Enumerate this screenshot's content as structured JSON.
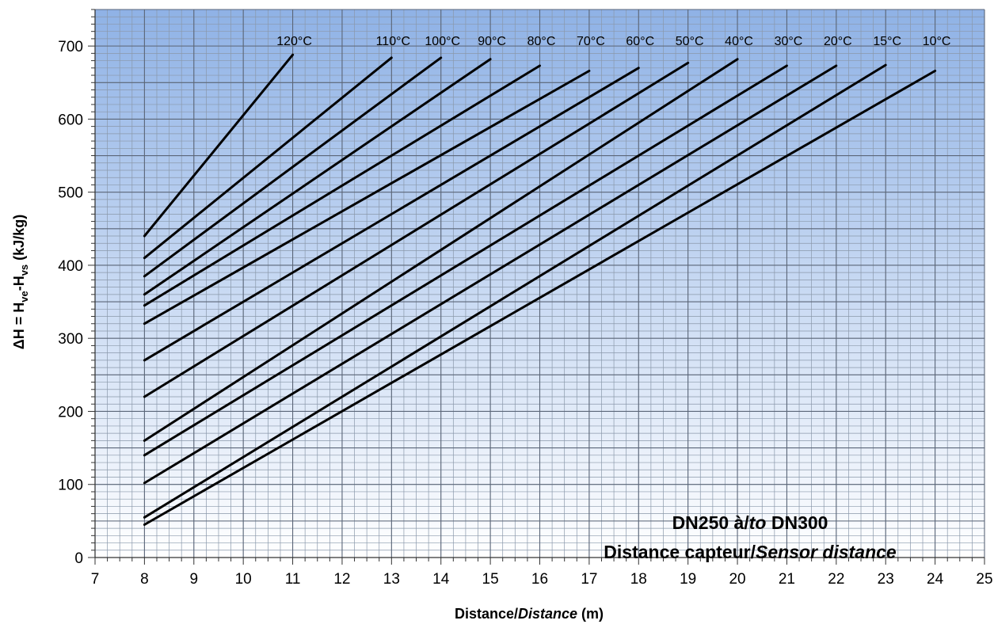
{
  "chart_data": {
    "type": "line",
    "title": "",
    "xlabel": {
      "normal": "Distance/",
      "italic": "Distance",
      "suffix": " (m)"
    },
    "ylabel": {
      "prefix": "ΔH = H",
      "sub1": "ve",
      "mid": "-H",
      "sub2": "vs",
      "suffix": " (kJ/kg)"
    },
    "xlim": [
      7,
      25
    ],
    "ylim": [
      0,
      750
    ],
    "xticks": [
      7,
      8,
      9,
      10,
      11,
      12,
      13,
      14,
      15,
      16,
      17,
      18,
      19,
      20,
      21,
      22,
      23,
      24,
      25
    ],
    "yticks": [
      0,
      100,
      200,
      300,
      400,
      500,
      600,
      700
    ],
    "grid": true,
    "annotation": {
      "line1": {
        "a": "DN250 à/",
        "b": "to",
        "c": " DN300"
      },
      "line2": {
        "a": "Distance capteur/",
        "b": "Sensor distance"
      }
    },
    "series": [
      {
        "name": "120°C",
        "x": [
          8,
          11
        ],
        "y": [
          440,
          688
        ]
      },
      {
        "name": "110°C",
        "x": [
          8,
          13
        ],
        "y": [
          410,
          684
        ]
      },
      {
        "name": "100°C",
        "x": [
          8,
          14
        ],
        "y": [
          385,
          684
        ]
      },
      {
        "name": "90°C",
        "x": [
          8,
          15
        ],
        "y": [
          360,
          682
        ]
      },
      {
        "name": "80°C",
        "x": [
          8,
          16
        ],
        "y": [
          345,
          673
        ]
      },
      {
        "name": "70°C",
        "x": [
          8,
          17
        ],
        "y": [
          320,
          666
        ]
      },
      {
        "name": "60°C",
        "x": [
          8,
          18
        ],
        "y": [
          270,
          670
        ]
      },
      {
        "name": "50°C",
        "x": [
          8,
          19
        ],
        "y": [
          220,
          677
        ]
      },
      {
        "name": "40°C",
        "x": [
          8,
          20
        ],
        "y": [
          160,
          682
        ]
      },
      {
        "name": "30°C",
        "x": [
          8,
          21
        ],
        "y": [
          140,
          673
        ]
      },
      {
        "name": "20°C",
        "x": [
          8,
          22
        ],
        "y": [
          102,
          673
        ]
      },
      {
        "name": "15°C",
        "x": [
          8,
          23
        ],
        "y": [
          55,
          674
        ]
      },
      {
        "name": "10°C",
        "x": [
          8,
          24
        ],
        "y": [
          45,
          666
        ]
      }
    ]
  }
}
